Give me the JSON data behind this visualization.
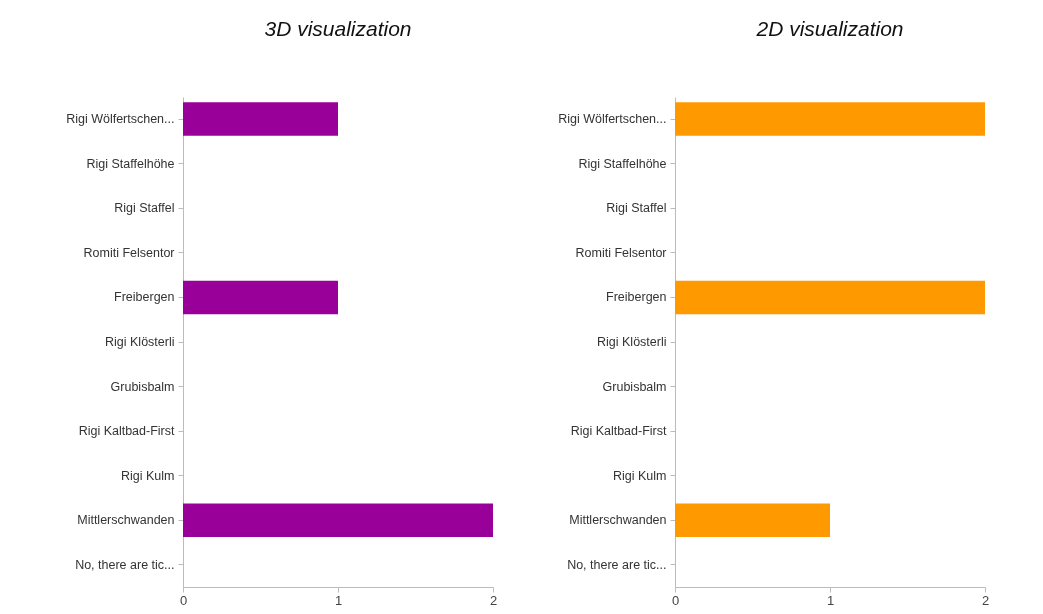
{
  "chart_data": [
    {
      "type": "bar",
      "title": "3D visualization",
      "orientation": "horizontal",
      "categories": [
        "Rigi Wölfertschen...",
        "Rigi Staffelhöhe",
        "Rigi Staffel",
        "Romiti Felsentor",
        "Freibergen",
        "Rigi Klösterli",
        "Grubisbalm",
        "Rigi Kaltbad-First",
        "Rigi Kulm",
        "Mittlerschwanden",
        "No, there are tic..."
      ],
      "values": [
        1,
        0,
        0,
        0,
        1,
        0,
        0,
        0,
        0,
        2,
        0
      ],
      "color": "#990099",
      "xlim": [
        0,
        2
      ],
      "xticks": [
        0,
        1,
        2
      ],
      "grid": false
    },
    {
      "type": "bar",
      "title": "2D visualization",
      "orientation": "horizontal",
      "categories": [
        "Rigi Wölfertschen...",
        "Rigi Staffelhöhe",
        "Rigi Staffel",
        "Romiti Felsentor",
        "Freibergen",
        "Rigi Klösterli",
        "Grubisbalm",
        "Rigi Kaltbad-First",
        "Rigi Kulm",
        "Mittlerschwanden",
        "No, there are tic..."
      ],
      "values": [
        2,
        0,
        0,
        0,
        2,
        0,
        0,
        0,
        0,
        1,
        0
      ],
      "color": "#ff9900",
      "xlim": [
        0,
        2
      ],
      "xticks": [
        0,
        1,
        2
      ],
      "grid": false
    }
  ]
}
